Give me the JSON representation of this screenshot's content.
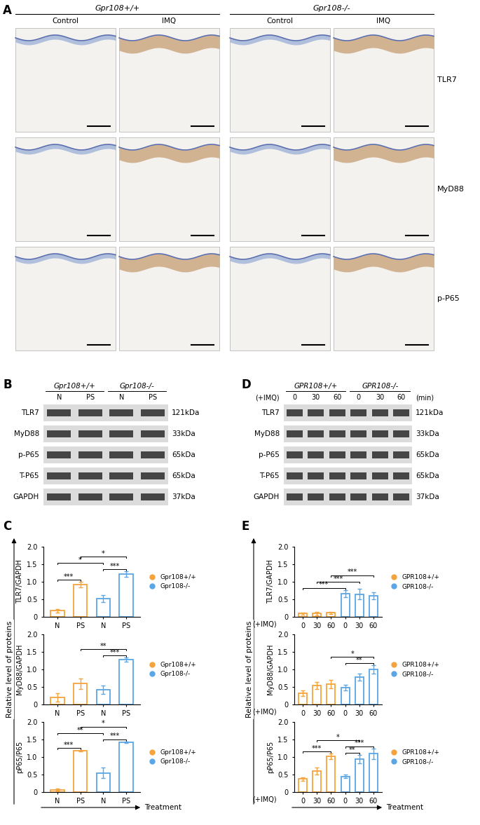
{
  "panel_labels": [
    "A",
    "B",
    "C",
    "D",
    "E"
  ],
  "histology": {
    "groups": [
      "Gpr108+/+",
      "Gpr108-/-"
    ],
    "conditions": [
      "Control",
      "IMQ",
      "Control",
      "IMQ"
    ],
    "stains": [
      "TLR7",
      "MyD88",
      "p-P65"
    ]
  },
  "blots": [
    {
      "groups": [
        "Gpr108+/+",
        "Gpr108-/-"
      ],
      "lanes": [
        "N",
        "PS",
        "N",
        "PS"
      ],
      "rows": [
        {
          "protein": "TLR7",
          "size": "121kDa"
        },
        {
          "protein": "MyD88",
          "size": "33kDa"
        },
        {
          "protein": "p-P65",
          "size": "65kDa"
        },
        {
          "protein": "T-P65",
          "size": "65kDa"
        },
        {
          "protein": "GAPDH",
          "size": "37kDa"
        }
      ]
    },
    {
      "groups": [
        "GPR108+/+",
        "GPR108-/-"
      ],
      "treatment": "(+IMQ)",
      "unit": "(min)",
      "lanes": [
        "0",
        "30",
        "60",
        "0",
        "30",
        "60"
      ],
      "rows": [
        {
          "protein": "TLR7",
          "size": "121kDa"
        },
        {
          "protein": "MyD88",
          "size": "33kDa"
        },
        {
          "protein": "p-P65",
          "size": "65kDa"
        },
        {
          "protein": "T-P65",
          "size": "65kDa"
        },
        {
          "protein": "GAPDH",
          "size": "37kDa"
        }
      ]
    }
  ],
  "shared_ylabel": "Relative level of proteins",
  "chart_data": [
    {
      "type": "bar",
      "ylabel": "TLR7/GAPDH",
      "categories": [
        "N",
        "PS",
        "N",
        "PS"
      ],
      "series": [
        {
          "name": "Gpr108+/+",
          "color": "#F5A33C",
          "values": [
            0.18,
            0.92,
            null,
            null
          ],
          "errors": [
            0.05,
            0.08,
            null,
            null
          ]
        },
        {
          "name": "Gpr108-/-",
          "color": "#5AA6E6",
          "values": [
            null,
            null,
            0.52,
            1.22
          ],
          "errors": [
            null,
            null,
            0.1,
            0.08
          ]
        }
      ],
      "ylim": [
        0,
        2.0
      ],
      "yticks": [
        0,
        0.5,
        1.0,
        1.5,
        2.0
      ],
      "legend": "right",
      "significance": [
        {
          "from": 0,
          "to": 1,
          "label": "***"
        },
        {
          "from": 2,
          "to": 3,
          "label": "***"
        },
        {
          "from": 0,
          "to": 2,
          "label": "*"
        },
        {
          "from": 1,
          "to": 3,
          "label": "*"
        }
      ]
    },
    {
      "type": "bar",
      "ylabel": "MyD88/GAPDH",
      "categories": [
        "N",
        "PS",
        "N",
        "PS"
      ],
      "series": [
        {
          "name": "Gpr108+/+",
          "color": "#F5A33C",
          "values": [
            0.2,
            0.6,
            null,
            null
          ],
          "errors": [
            0.12,
            0.15,
            null,
            null
          ]
        },
        {
          "name": "Gpr108-/-",
          "color": "#5AA6E6",
          "values": [
            null,
            null,
            0.42,
            1.28
          ],
          "errors": [
            null,
            null,
            0.12,
            0.06
          ]
        }
      ],
      "ylim": [
        0,
        2.0
      ],
      "yticks": [
        0,
        0.5,
        1.0,
        1.5,
        2.0
      ],
      "legend": "right",
      "significance": [
        {
          "from": 2,
          "to": 3,
          "label": "***"
        },
        {
          "from": 1,
          "to": 3,
          "label": "**"
        }
      ]
    },
    {
      "type": "bar",
      "ylabel": "pP65/P65",
      "categories": [
        "N",
        "PS",
        "N",
        "PS"
      ],
      "xlabel": "Treatment",
      "series": [
        {
          "name": "Gpr108+/+",
          "color": "#F5A33C",
          "values": [
            0.07,
            1.18,
            null,
            null
          ],
          "errors": [
            0.03,
            0.02,
            null,
            null
          ]
        },
        {
          "name": "Gpr108-/-",
          "color": "#5AA6E6",
          "values": [
            null,
            null,
            0.55,
            1.43
          ],
          "errors": [
            null,
            null,
            0.15,
            0.02
          ]
        }
      ],
      "ylim": [
        0,
        2.0
      ],
      "yticks": [
        0,
        0.5,
        1.0,
        1.5,
        2.0
      ],
      "legend": "right",
      "significance": [
        {
          "from": 0,
          "to": 1,
          "label": "***"
        },
        {
          "from": 2,
          "to": 3,
          "label": "***"
        },
        {
          "from": 0,
          "to": 2,
          "label": "**"
        },
        {
          "from": 1,
          "to": 3,
          "label": "*"
        }
      ]
    },
    {
      "type": "bar",
      "ylabel": "TLR7/GAPDH",
      "x_prefix": "(+IMQ)",
      "categories": [
        "0",
        "30",
        "60",
        "0",
        "30",
        "60"
      ],
      "series": [
        {
          "name": "GPR108+/+",
          "color": "#F5A33C",
          "values": [
            0.1,
            0.1,
            0.12,
            null,
            null,
            null
          ],
          "errors": [
            0.03,
            0.05,
            0.03,
            null,
            null,
            null
          ]
        },
        {
          "name": "GPR108-/-",
          "color": "#5AA6E6",
          "values": [
            null,
            null,
            null,
            0.67,
            0.65,
            0.6
          ],
          "errors": [
            null,
            null,
            null,
            0.1,
            0.15,
            0.1
          ]
        }
      ],
      "ylim": [
        0,
        2.0
      ],
      "yticks": [
        0,
        0.5,
        1.0,
        1.5,
        2.0
      ],
      "legend": "right",
      "significance": [
        {
          "from": 0,
          "to": 3,
          "label": "***"
        },
        {
          "from": 1,
          "to": 4,
          "label": "***"
        },
        {
          "from": 2,
          "to": 5,
          "label": "***"
        }
      ]
    },
    {
      "type": "bar",
      "ylabel": "MyD88/GAPDH",
      "x_prefix": "(+IMQ)",
      "categories": [
        "0",
        "30",
        "60",
        "0",
        "30",
        "60"
      ],
      "series": [
        {
          "name": "GPR108+/+",
          "color": "#F5A33C",
          "values": [
            0.33,
            0.55,
            0.58,
            null,
            null,
            null
          ],
          "errors": [
            0.08,
            0.1,
            0.12,
            null,
            null,
            null
          ]
        },
        {
          "name": "GPR108-/-",
          "color": "#5AA6E6",
          "values": [
            null,
            null,
            null,
            0.48,
            0.78,
            1.0
          ],
          "errors": [
            null,
            null,
            null,
            0.08,
            0.1,
            0.12
          ]
        }
      ],
      "ylim": [
        0,
        2.0
      ],
      "yticks": [
        0,
        0.5,
        1.0,
        1.5,
        2.0
      ],
      "legend": "right",
      "significance": [
        {
          "from": 3,
          "to": 5,
          "label": "**"
        },
        {
          "from": 2,
          "to": 5,
          "label": "*"
        }
      ]
    },
    {
      "type": "bar",
      "ylabel": "pP65/P65",
      "x_prefix": "(+IMQ)",
      "categories": [
        "0",
        "30",
        "60",
        "0",
        "30",
        "60"
      ],
      "xlabel": "Treatment",
      "series": [
        {
          "name": "GPR108+/+",
          "color": "#F5A33C",
          "values": [
            0.38,
            0.6,
            1.02,
            null,
            null,
            null
          ],
          "errors": [
            0.05,
            0.1,
            0.08,
            null,
            null,
            null
          ]
        },
        {
          "name": "GPR108-/-",
          "color": "#5AA6E6",
          "values": [
            null,
            null,
            null,
            0.45,
            0.95,
            1.1
          ],
          "errors": [
            null,
            null,
            null,
            0.05,
            0.12,
            0.15
          ]
        }
      ],
      "ylim": [
        0,
        2.0
      ],
      "yticks": [
        0,
        0.5,
        1.0,
        1.5,
        2.0
      ],
      "legend": "right",
      "significance": [
        {
          "from": 0,
          "to": 2,
          "label": "***"
        },
        {
          "from": 3,
          "to": 4,
          "label": "**"
        },
        {
          "from": 3,
          "to": 5,
          "label": "***"
        },
        {
          "from": 1,
          "to": 4,
          "label": "*"
        }
      ]
    }
  ]
}
